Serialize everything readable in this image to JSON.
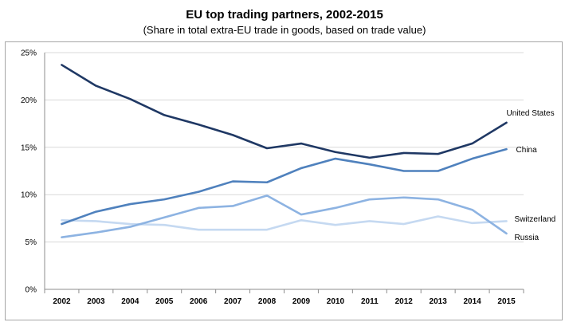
{
  "chart_data": {
    "type": "line",
    "title": "EU top trading partners, 2002-2015",
    "subtitle": "(Share in total extra-EU trade in goods, based on trade value)",
    "xlabel": "",
    "ylabel": "",
    "x": [
      "2002",
      "2003",
      "2004",
      "2005",
      "2006",
      "2007",
      "2008",
      "2009",
      "2010",
      "2011",
      "2012",
      "2013",
      "2014",
      "2015"
    ],
    "ylim": [
      0,
      25
    ],
    "yticks": [
      0,
      5,
      10,
      15,
      20,
      25
    ],
    "ytick_labels": [
      "0%",
      "5%",
      "10%",
      "15%",
      "20%",
      "25%"
    ],
    "grid": true,
    "series": [
      {
        "name": "United States",
        "color": "#1f3864",
        "values": [
          23.7,
          21.5,
          20.1,
          18.4,
          17.4,
          16.3,
          14.9,
          15.4,
          14.5,
          13.9,
          14.4,
          14.3,
          15.4,
          17.6
        ]
      },
      {
        "name": "China",
        "color": "#4f81bd",
        "values": [
          6.9,
          8.2,
          9.0,
          9.5,
          10.3,
          11.4,
          11.3,
          12.8,
          13.8,
          13.2,
          12.5,
          12.5,
          13.8,
          14.8
        ]
      },
      {
        "name": "Russia",
        "color": "#8db3e2",
        "values": [
          5.5,
          6.0,
          6.6,
          7.6,
          8.6,
          8.8,
          9.9,
          7.9,
          8.6,
          9.5,
          9.7,
          9.5,
          8.4,
          5.9
        ]
      },
      {
        "name": "Switzerland",
        "color": "#c5d9f1",
        "values": [
          7.3,
          7.2,
          6.9,
          6.8,
          6.3,
          6.3,
          6.3,
          7.3,
          6.8,
          7.2,
          6.9,
          7.7,
          7.0,
          7.2
        ]
      }
    ]
  }
}
